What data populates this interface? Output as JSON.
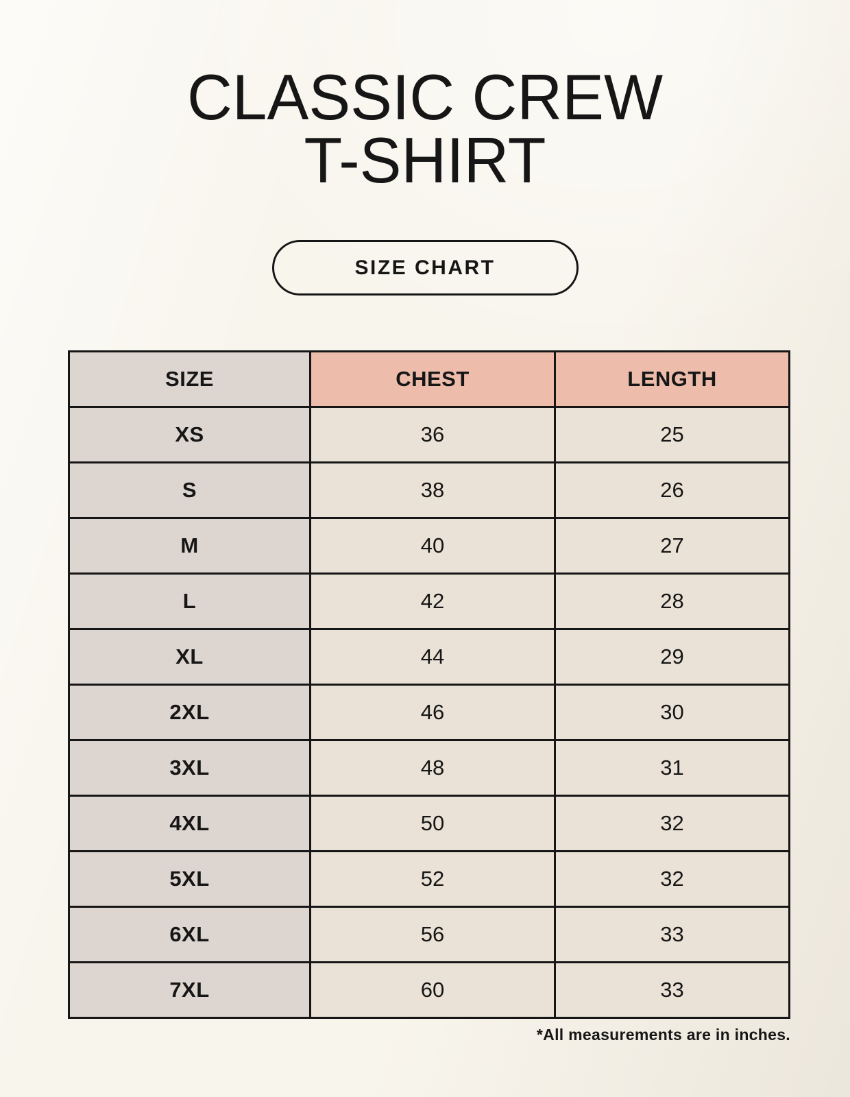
{
  "header": {
    "title_line1": "CLASSIC CREW",
    "title_line2": "T-SHIRT",
    "badge_label": "SIZE CHART"
  },
  "footnote": "*All measurements are in inches.",
  "chart_data": {
    "type": "table",
    "title": "CLASSIC CREW T-SHIRT — SIZE CHART",
    "columns": [
      "SIZE",
      "CHEST",
      "LENGTH"
    ],
    "rows": [
      [
        "XS",
        "36",
        "25"
      ],
      [
        "S",
        "38",
        "26"
      ],
      [
        "M",
        "40",
        "27"
      ],
      [
        "L",
        "42",
        "28"
      ],
      [
        "XL",
        "44",
        "29"
      ],
      [
        "2XL",
        "46",
        "30"
      ],
      [
        "3XL",
        "48",
        "31"
      ],
      [
        "4XL",
        "50",
        "32"
      ],
      [
        "5XL",
        "52",
        "32"
      ],
      [
        "6XL",
        "56",
        "33"
      ],
      [
        "7XL",
        "60",
        "33"
      ]
    ],
    "units": "inches"
  },
  "colors": {
    "page_bg": "#f8f5ed",
    "header_pink": "#edbcab",
    "size_gray": "#ddd5cf",
    "cell_cream": "#eae2d6",
    "border": "#161616",
    "text": "#161616"
  }
}
